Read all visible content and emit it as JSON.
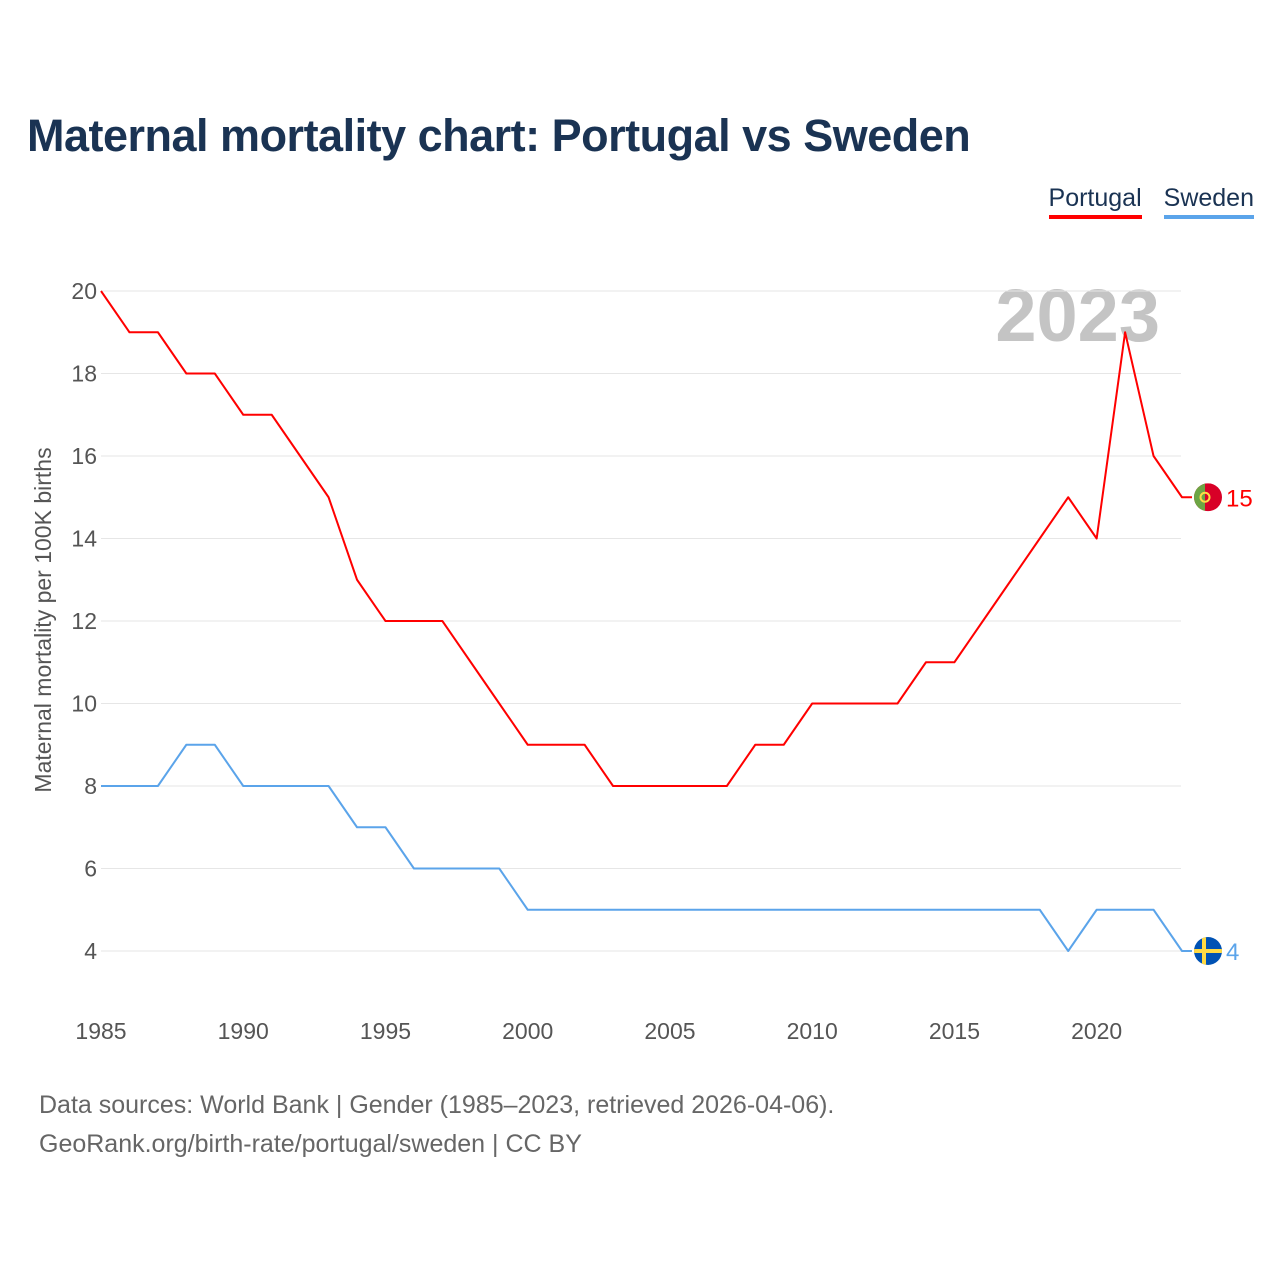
{
  "title": "Maternal mortality chart: Portugal vs Sweden",
  "footer": {
    "line1": "Data sources: World Bank | Gender (1985–2023, retrieved 2026-04-06).",
    "line2": "GeoRank.org/birth-rate/portugal/sweden | CC BY"
  },
  "chart_data": {
    "type": "line",
    "title": "Maternal mortality chart: Portugal vs Sweden",
    "ylabel": "Maternal mortality per 100K births",
    "xlabel": "",
    "year_label": "2023",
    "xlim": [
      1985,
      2023
    ],
    "ylim": [
      4,
      20
    ],
    "xticks": [
      1985,
      1990,
      1995,
      2000,
      2005,
      2010,
      2015,
      2020
    ],
    "yticks": [
      4,
      6,
      8,
      10,
      12,
      14,
      16,
      18,
      20
    ],
    "legend_position": "top-right",
    "x": [
      1985,
      1986,
      1987,
      1988,
      1989,
      1990,
      1991,
      1992,
      1993,
      1994,
      1995,
      1996,
      1997,
      1998,
      1999,
      2000,
      2001,
      2002,
      2003,
      2004,
      2005,
      2006,
      2007,
      2008,
      2009,
      2010,
      2011,
      2012,
      2013,
      2014,
      2015,
      2016,
      2017,
      2018,
      2019,
      2020,
      2021,
      2022,
      2023
    ],
    "series": [
      {
        "name": "Portugal",
        "color": "#ff0000",
        "end_label": "15",
        "values": [
          20,
          19,
          19,
          18,
          18,
          17,
          17,
          16,
          15,
          13,
          12,
          12,
          12,
          11,
          10,
          9,
          9,
          9,
          8,
          8,
          8,
          8,
          8,
          9,
          9,
          10,
          10,
          10,
          10,
          11,
          11,
          12,
          13,
          14,
          15,
          14,
          19,
          16,
          15
        ]
      },
      {
        "name": "Sweden",
        "color": "#5ba4ea",
        "end_label": "4",
        "values": [
          8,
          8,
          8,
          9,
          9,
          8,
          8,
          8,
          8,
          7,
          7,
          6,
          6,
          6,
          6,
          5,
          5,
          5,
          5,
          5,
          5,
          5,
          5,
          5,
          5,
          5,
          5,
          5,
          5,
          5,
          5,
          5,
          5,
          5,
          4,
          5,
          5,
          5,
          4
        ]
      }
    ]
  }
}
